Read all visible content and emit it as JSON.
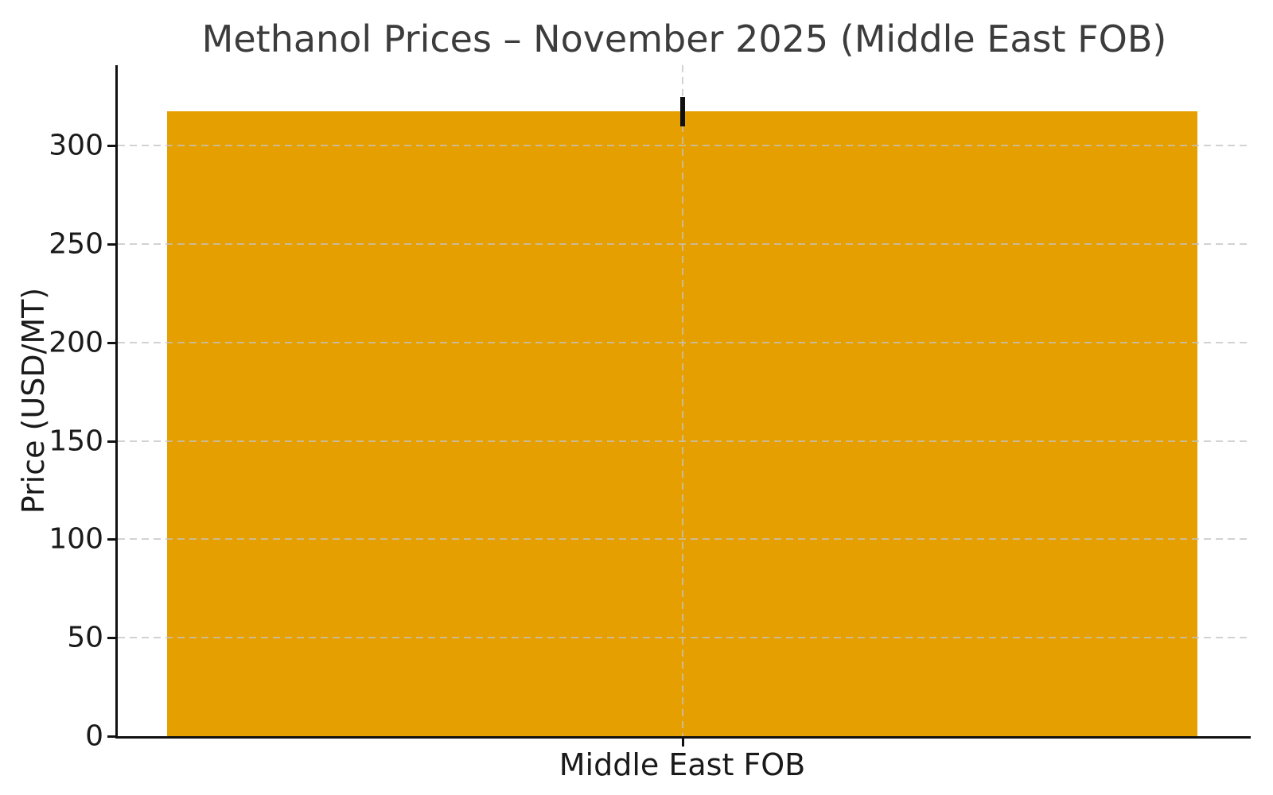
{
  "chart_data": {
    "type": "bar",
    "title": "Methanol Prices – November 2025 (Middle East FOB)",
    "xlabel": "",
    "ylabel": "Price (USD/MT)",
    "categories": [
      "Middle East FOB"
    ],
    "values": [
      317.5
    ],
    "error_bars": {
      "low": [
        310
      ],
      "high": [
        325
      ]
    },
    "yticks": [
      0,
      50,
      100,
      150,
      200,
      250,
      300
    ],
    "ylim": [
      0,
      341
    ],
    "grid": true,
    "legend": "none",
    "colors": {
      "bar": "#E69F00",
      "error_bar": "#111111",
      "axis": "#111111",
      "grid": "#c3c3c3",
      "title_text": "#3c3c3c",
      "tick_text": "#1a1a1a",
      "background": "#ffffff"
    }
  }
}
